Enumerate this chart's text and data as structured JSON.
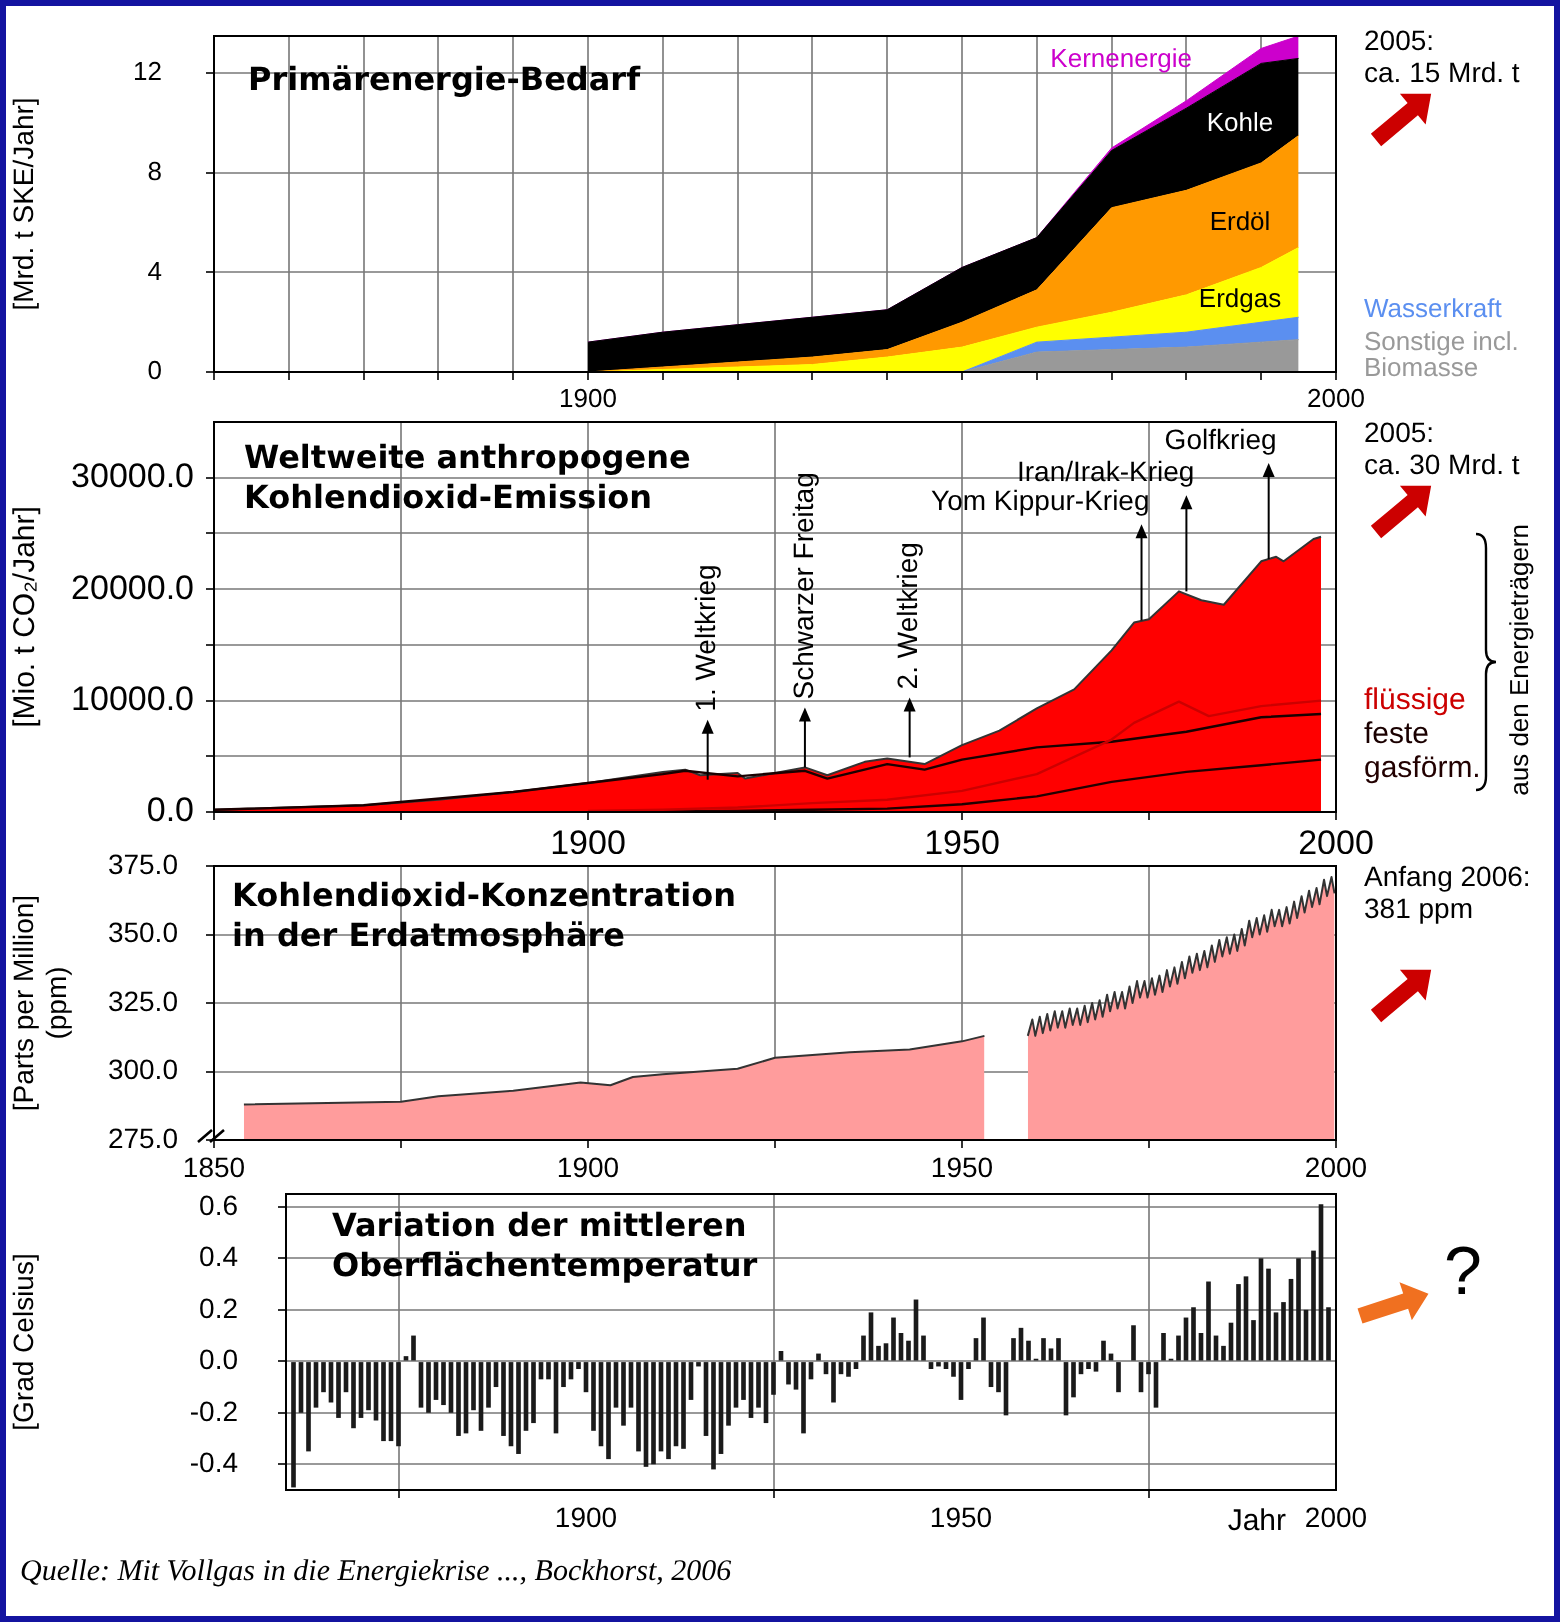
{
  "chart_data": [
    {
      "type": "area",
      "title": "Primärenergie-Bedarf",
      "ylabel": "[Mrd. t SKE/Jahr]",
      "stacked": true,
      "grid": true,
      "x": [
        1900,
        1910,
        1920,
        1930,
        1940,
        1950,
        1960,
        1970,
        1980,
        1990,
        1995
      ],
      "series": [
        {
          "name": "Sonstige incl.\nBiomasse",
          "color": "#999999",
          "values": [
            0,
            0,
            0,
            0,
            0,
            0,
            0.8,
            0.9,
            1.0,
            1.2,
            1.3
          ]
        },
        {
          "name": "Wasserkraft",
          "color": "#5b8ff0",
          "values": [
            0,
            0,
            0,
            0,
            0,
            0,
            0.4,
            0.5,
            0.6,
            0.8,
            0.9
          ]
        },
        {
          "name": "Erdgas",
          "color": "#ffff00",
          "values": [
            0,
            0.1,
            0.2,
            0.3,
            0.6,
            1.0,
            0.6,
            1.0,
            1.5,
            2.2,
            2.8
          ]
        },
        {
          "name": "Erdöl",
          "color": "#ff9900",
          "values": [
            0,
            0.1,
            0.2,
            0.3,
            0.3,
            1.0,
            1.5,
            4.2,
            4.2,
            4.2,
            4.5
          ]
        },
        {
          "name": "Kohle",
          "color": "#000000",
          "values": [
            1.2,
            1.4,
            1.5,
            1.6,
            1.6,
            2.2,
            2.1,
            2.3,
            3.3,
            4.0,
            3.1
          ]
        },
        {
          "name": "Kernenergie",
          "color": "#cc00cc",
          "values": [
            0,
            0,
            0,
            0,
            0,
            0,
            0,
            0.1,
            0.3,
            0.6,
            0.9
          ]
        }
      ],
      "xlim": [
        1850,
        2000
      ],
      "xticks": [
        {
          "value": 1850,
          "label": null
        },
        {
          "value": 1860,
          "label": null
        },
        {
          "value": 1870,
          "label": null
        },
        {
          "value": 1880,
          "label": null
        },
        {
          "value": 1890,
          "label": null
        },
        1900,
        {
          "value": 1910,
          "label": null
        },
        {
          "value": 1920,
          "label": null
        },
        {
          "value": 1930,
          "label": null
        },
        {
          "value": 1940,
          "label": null
        },
        {
          "value": 1950,
          "label": null
        },
        {
          "value": 1960,
          "label": null
        },
        {
          "value": 1970,
          "label": null
        },
        {
          "value": 1980,
          "label": null
        },
        {
          "value": 1990,
          "label": null
        },
        2000
      ],
      "ylim": [
        0,
        13.5
      ],
      "yticks": [
        0,
        4,
        8,
        12
      ],
      "annotations": [
        "2005:\nca. 15 Mrd. t"
      ]
    },
    {
      "type": "area",
      "title": "Weltweite anthropogene\nKohlendioxid-Emission",
      "ylabel": "[Mio. t CO₂/Jahr]",
      "grid": true,
      "series": [
        {
          "type": "area",
          "color": "#ff0000",
          "x": [
            1850,
            1860,
            1870,
            1880,
            1890,
            1900,
            1905,
            1910,
            1913,
            1915,
            1920,
            1921,
            1925,
            1929,
            1932,
            1937,
            1940,
            1945,
            1950,
            1955,
            1960,
            1965,
            1970,
            1973,
            1975,
            1979,
            1982,
            1985,
            1990,
            1992,
            1993,
            1997,
            1998
          ],
          "values": [
            200,
            400,
            600,
            1100,
            1800,
            2600,
            3100,
            3600,
            3800,
            3300,
            3500,
            3000,
            3500,
            4000,
            3300,
            4500,
            4800,
            4300,
            6000,
            7300,
            9300,
            11000,
            14500,
            17000,
            17300,
            19800,
            19000,
            18600,
            22500,
            22900,
            22500,
            24500,
            24700
          ]
        },
        {
          "type": "line",
          "name": "flüssige",
          "color": "#cc0000",
          "x": [
            1900,
            1910,
            1920,
            1930,
            1940,
            1950,
            1960,
            1970,
            1973,
            1979,
            1983,
            1990,
            1998
          ],
          "values": [
            100,
            200,
            400,
            800,
            1100,
            1900,
            3400,
            6500,
            8000,
            9900,
            8600,
            9500,
            10000
          ]
        },
        {
          "type": "line",
          "name": "feste",
          "color": "#1a0000",
          "x": [
            1850,
            1870,
            1890,
            1900,
            1910,
            1913,
            1920,
            1929,
            1932,
            1940,
            1945,
            1950,
            1960,
            1970,
            1980,
            1990,
            1998
          ],
          "values": [
            200,
            600,
            1800,
            2600,
            3400,
            3700,
            3200,
            3700,
            3000,
            4300,
            3800,
            4700,
            5800,
            6300,
            7200,
            8500,
            8800
          ]
        },
        {
          "type": "line",
          "name": "gasförm.",
          "color": "#220000",
          "x": [
            1900,
            1920,
            1930,
            1940,
            1950,
            1960,
            1970,
            1980,
            1990,
            1998
          ],
          "values": [
            0,
            100,
            200,
            300,
            700,
            1400,
            2700,
            3600,
            4200,
            4700
          ]
        }
      ],
      "xlim": [
        1850,
        2000
      ],
      "xticks": [
        {
          "value": 1850,
          "label": null
        },
        {
          "value": 1875,
          "label": null
        },
        1900,
        {
          "value": 1925,
          "label": null
        },
        1950,
        {
          "value": 1975,
          "label": null
        },
        2000
      ],
      "ylim": [
        0,
        35000
      ],
      "yticks": [
        {
          "value": 0,
          "label": "0.0"
        },
        {
          "value": 5000,
          "label": null
        },
        {
          "value": 10000,
          "label": "10000.0"
        },
        {
          "value": 15000,
          "label": null
        },
        {
          "value": 20000,
          "label": "20000.0"
        },
        {
          "value": 25000,
          "label": null
        },
        {
          "value": 30000,
          "label": "30000.0"
        }
      ],
      "annotations": [
        "2005:\nca. 30 Mrd. t",
        "aus den Energieträgern",
        {
          "text": "1. Weltkrieg",
          "x": 1916,
          "y": 2900
        },
        {
          "text": "Schwarzer Freitag",
          "x": 1929,
          "y": 4000
        },
        {
          "text": "2. Weltkrieg",
          "x": 1943,
          "y": 4900
        },
        {
          "text": "Yom Kippur-Krieg",
          "x": 1974,
          "y": 17200
        },
        {
          "text": "Iran/Irak-Krieg",
          "x": 1980,
          "y": 19800
        },
        {
          "text": "Golfkrieg",
          "x": 1991,
          "y": 22700
        }
      ]
    },
    {
      "type": "area",
      "title": "Kohlendioxid-Konzentration\nin der Erdatmosphäre",
      "ylabel": "[Parts per Million]\n(ppm)",
      "grid": true,
      "x": [
        1854,
        1875,
        1880,
        1890,
        1899,
        1903,
        1906,
        1910,
        1920,
        1925,
        1935,
        1943,
        1950,
        1953,
        1956,
        1958.8,
        1959.4,
        1959.8,
        1960.4,
        1960.8,
        1961.4,
        1961.8,
        1962.4,
        1962.8,
        1963.4,
        1963.8,
        1964.4,
        1964.8,
        1965.4,
        1965.8,
        1966.4,
        1966.8,
        1967.4,
        1967.8,
        1968.4,
        1968.8,
        1969.4,
        1969.8,
        1970.4,
        1970.8,
        1971.4,
        1971.8,
        1972.4,
        1972.8,
        1973.4,
        1973.8,
        1974.4,
        1974.8,
        1975.4,
        1975.8,
        1976.4,
        1976.8,
        1977.4,
        1977.8,
        1978.4,
        1978.8,
        1979.4,
        1979.8,
        1980.4,
        1980.8,
        1981.4,
        1981.8,
        1982.4,
        1982.8,
        1983.4,
        1983.8,
        1984.4,
        1984.8,
        1985.4,
        1985.8,
        1986.4,
        1986.8,
        1987.4,
        1987.8,
        1988.4,
        1988.8,
        1989.4,
        1989.8,
        1990.4,
        1990.8,
        1991.4,
        1991.8,
        1992.4,
        1992.8,
        1993.4,
        1993.8,
        1994.4,
        1994.8,
        1995.4,
        1995.8,
        1996.4,
        1996.8,
        1997.4,
        1997.8,
        1998.4,
        1998.8,
        1999.4,
        1999.8
      ],
      "color": "#ff9c9c",
      "values": [
        288,
        289,
        291,
        293,
        296,
        295,
        298,
        299,
        301,
        305,
        307,
        308,
        311,
        313,
        null,
        313,
        319,
        313,
        320,
        314,
        321,
        315,
        322,
        316,
        322,
        316,
        323,
        317,
        323,
        317,
        324,
        318,
        325,
        319,
        326,
        320,
        328,
        322,
        329,
        323,
        329,
        323,
        331,
        325,
        333,
        327,
        333,
        327,
        334,
        328,
        335,
        329,
        337,
        331,
        338,
        332,
        340,
        334,
        342,
        336,
        343,
        337,
        344,
        338,
        346,
        340,
        348,
        342,
        349,
        343,
        350,
        344,
        352,
        346,
        355,
        349,
        356,
        350,
        357,
        351,
        359,
        353,
        359,
        353,
        360,
        354,
        362,
        356,
        364,
        358,
        366,
        360,
        367,
        361,
        370,
        364,
        371,
        365
      ],
      "xlim": [
        1850,
        2000
      ],
      "xticks": [
        1850,
        {
          "value": 1875,
          "label": null
        },
        1900,
        {
          "value": 1925,
          "label": null
        },
        1950,
        {
          "value": 1975,
          "label": null
        },
        2000
      ],
      "ylim": [
        275,
        375
      ],
      "yticks": [
        {
          "value": 275,
          "label": "275.0"
        },
        {
          "value": 300,
          "label": "300.0"
        },
        {
          "value": 325,
          "label": "325.0"
        },
        {
          "value": 350,
          "label": "350.0"
        },
        {
          "value": 375,
          "label": "375.0"
        }
      ],
      "annotations": [
        "Anfang 2006:\n381 ppm"
      ]
    },
    {
      "type": "bar",
      "title": "Variation der mittleren\nOberflächentemperatur",
      "ylabel": "[Grad Celsius]",
      "xlabel": "Jahr",
      "grid": true,
      "color": "#1a1a1a",
      "x": [
        1861,
        1862,
        1863,
        1864,
        1865,
        1866,
        1867,
        1868,
        1869,
        1870,
        1871,
        1872,
        1873,
        1874,
        1875,
        1876,
        1877,
        1878,
        1879,
        1880,
        1881,
        1882,
        1883,
        1884,
        1885,
        1886,
        1887,
        1888,
        1889,
        1890,
        1891,
        1892,
        1893,
        1894,
        1895,
        1896,
        1897,
        1898,
        1899,
        1900,
        1901,
        1902,
        1903,
        1904,
        1905,
        1906,
        1907,
        1908,
        1909,
        1910,
        1911,
        1912,
        1913,
        1914,
        1915,
        1916,
        1917,
        1918,
        1919,
        1920,
        1921,
        1922,
        1923,
        1924,
        1925,
        1926,
        1927,
        1928,
        1929,
        1930,
        1931,
        1932,
        1933,
        1934,
        1935,
        1936,
        1937,
        1938,
        1939,
        1940,
        1941,
        1942,
        1943,
        1944,
        1945,
        1946,
        1947,
        1948,
        1949,
        1950,
        1951,
        1952,
        1953,
        1954,
        1955,
        1956,
        1957,
        1958,
        1959,
        1960,
        1961,
        1962,
        1963,
        1964,
        1965,
        1966,
        1967,
        1968,
        1969,
        1970,
        1971,
        1972,
        1973,
        1974,
        1975,
        1976,
        1977,
        1978,
        1979,
        1980,
        1981,
        1982,
        1983,
        1984,
        1985,
        1986,
        1987,
        1988,
        1989,
        1990,
        1991,
        1992,
        1993,
        1994,
        1995,
        1996,
        1997,
        1998,
        1999
      ],
      "values": [
        -0.49,
        -0.2,
        -0.35,
        -0.18,
        -0.12,
        -0.16,
        -0.22,
        -0.12,
        -0.26,
        -0.22,
        -0.19,
        -0.23,
        -0.31,
        -0.31,
        -0.33,
        0.02,
        0.1,
        -0.18,
        -0.2,
        -0.15,
        -0.17,
        -0.2,
        -0.29,
        -0.28,
        -0.19,
        -0.27,
        -0.18,
        -0.1,
        -0.29,
        -0.33,
        -0.36,
        -0.27,
        -0.24,
        -0.07,
        -0.07,
        -0.28,
        -0.1,
        -0.07,
        -0.03,
        -0.12,
        -0.27,
        -0.33,
        -0.38,
        -0.18,
        -0.25,
        -0.18,
        -0.35,
        -0.41,
        -0.4,
        -0.35,
        -0.38,
        -0.33,
        -0.34,
        -0.15,
        -0.02,
        -0.29,
        -0.42,
        -0.36,
        -0.25,
        -0.18,
        -0.15,
        -0.22,
        -0.18,
        -0.24,
        -0.13,
        0.04,
        -0.09,
        -0.11,
        -0.28,
        -0.07,
        0.03,
        -0.05,
        -0.16,
        -0.05,
        -0.06,
        -0.03,
        0.1,
        0.19,
        0.06,
        0.07,
        0.17,
        0.11,
        0.08,
        0.24,
        0.1,
        -0.03,
        -0.02,
        -0.03,
        -0.06,
        -0.15,
        -0.03,
        0.09,
        0.17,
        -0.1,
        -0.12,
        -0.21,
        0.09,
        0.13,
        0.08,
        0.01,
        0.09,
        0.05,
        0.09,
        -0.21,
        -0.14,
        -0.05,
        -0.03,
        -0.04,
        0.08,
        0.03,
        -0.12,
        0,
        0.14,
        -0.12,
        -0.05,
        -0.18,
        0.11,
        0.01,
        0.1,
        0.17,
        0.21,
        0.11,
        0.31,
        0.1,
        0.06,
        0.15,
        0.3,
        0.33,
        0.16,
        0.4,
        0.36,
        0.19,
        0.23,
        0.32,
        0.4,
        0.2,
        0.43,
        0.61,
        0.21
      ],
      "xlim": [
        1860,
        2000
      ],
      "xticks": [
        1900,
        1950,
        2000
      ],
      "ylim": [
        -0.5,
        0.65
      ],
      "yticks": [
        -0.4,
        -0.2,
        {
          "value": 0,
          "label": "0.0"
        },
        0.2,
        0.4,
        0.6
      ],
      "annotations": [
        "?",
        "Quelle: Mit Vollgas in die Energiekrise ..., Bockhorst, 2006"
      ]
    }
  ]
}
